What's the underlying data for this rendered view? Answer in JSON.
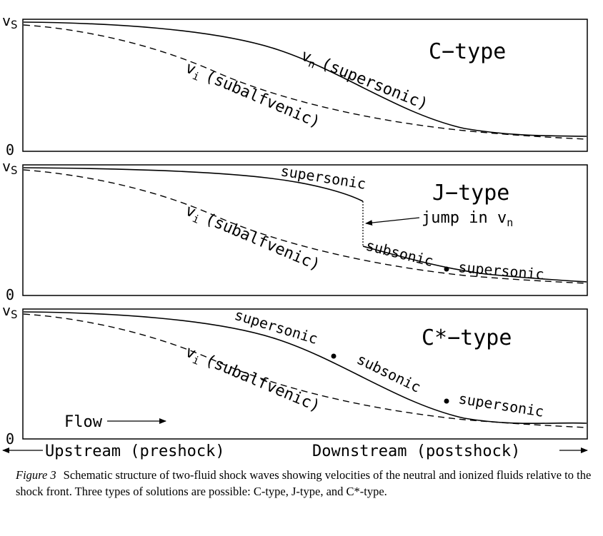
{
  "figure": {
    "axis": {
      "vs_label": "v",
      "vs_subscript": "S",
      "zero_label": "0",
      "upstream_label": "Upstream (preshock)",
      "downstream_label": "Downstream (postshock)",
      "flow_label": "Flow"
    },
    "panels": [
      {
        "title": "C−type",
        "vi_symbol": "v",
        "vi_subscript": "i",
        "vi_label": "(subalfvenic)",
        "vn_symbol": "v",
        "vn_subscript": "n",
        "vn_label": "(supersonic)"
      },
      {
        "title": "J−type",
        "vi_symbol": "v",
        "vi_subscript": "i",
        "vi_label": "(subalfvenic)",
        "segment_1": "supersonic",
        "segment_2": "subsonic",
        "segment_3": "supersonic",
        "jump_text": "jump in v",
        "jump_subscript": "n"
      },
      {
        "title": "C*−type",
        "vi_symbol": "v",
        "vi_subscript": "i",
        "vi_label": "(subalfvenic)",
        "segment_1": "supersonic",
        "segment_2": "subsonic",
        "segment_3": "supersonic"
      }
    ]
  },
  "caption": {
    "label": "Figure 3",
    "text": "Schematic structure of two-fluid shock waves showing velocities of the neutral and ionized fluids relative to the shock front. Three types of solutions are possible: C-type, J-type, and C*-type."
  }
}
